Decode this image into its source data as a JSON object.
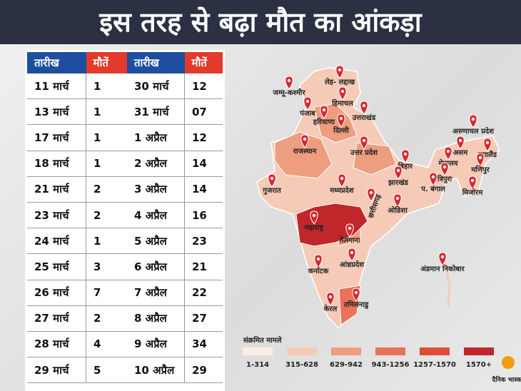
{
  "header": {
    "title": "इस तरह से बढ़ा मौत का आंकड़ा"
  },
  "table": {
    "columns": [
      "तारीख",
      "मौतें"
    ],
    "rows": [
      [
        "11 मार्च",
        "1"
      ],
      [
        "13 मार्च",
        "1"
      ],
      [
        "17 मार्च",
        "1"
      ],
      [
        "18 मार्च",
        "1"
      ],
      [
        "21 मार्च",
        "2"
      ],
      [
        "23 मार्च",
        "2"
      ],
      [
        "24 मार्च",
        "1"
      ],
      [
        "25 मार्च",
        "3"
      ],
      [
        "26 मार्च",
        "7"
      ],
      [
        "27 मार्च",
        "2"
      ],
      [
        "28 मार्च",
        "4"
      ],
      [
        "29 मार्च",
        "5"
      ],
      [
        "30 मार्च",
        "12"
      ],
      [
        "31 मार्च",
        "07"
      ],
      [
        "1 अप्रैल",
        "12"
      ],
      [
        "2 अप्रैल",
        "14"
      ],
      [
        "3 अप्रैल",
        "14"
      ],
      [
        "4 अप्रैल",
        "16"
      ],
      [
        "5 अप्रैल",
        "23"
      ],
      [
        "6 अप्रैल",
        "21"
      ],
      [
        "7 अप्रैल",
        "22"
      ],
      [
        "8 अप्रैल",
        "27"
      ],
      [
        "9 अप्रैल",
        "34"
      ],
      [
        "10 अप्रैल",
        "29"
      ]
    ]
  },
  "map": {
    "labels": [
      "लेह- लद्दाख",
      "जम्मू-कश्मीर",
      "हिमाचल",
      "पंजाब",
      "उत्तराखंड",
      "हरियाणा",
      "दिल्ली",
      "राजस्थान",
      "उत्तर प्रदेश",
      "बिहार",
      "अरुणाचल प्रदेश",
      "असम",
      "नगालैंड",
      "मेघालय",
      "मणिपुर",
      "त्रिपुरा",
      "प. बंगाल",
      "मिजोरम",
      "गुजरात",
      "मध्यप्रदेश",
      "झारखंड",
      "छत्तीसगढ़",
      "ओडिशा",
      "महाराष्ट्र",
      "तेलंगाना",
      "आंध्रप्रदेश",
      "कर्नाटक",
      "अंडमान निकोबार",
      "केरल",
      "तमिलनाडु"
    ]
  },
  "legend": {
    "title": "संक्रमित मामले",
    "items": [
      "1-314",
      "315-628",
      "629-942",
      "943-1256",
      "1257-1570",
      "1570+"
    ],
    "colors": [
      "#fbeee6",
      "#f5cbb8",
      "#ee9d7e",
      "#e8735a",
      "#e04b35",
      "#c0262a"
    ]
  },
  "logo": {
    "text": "दैनिक भास्कर"
  }
}
